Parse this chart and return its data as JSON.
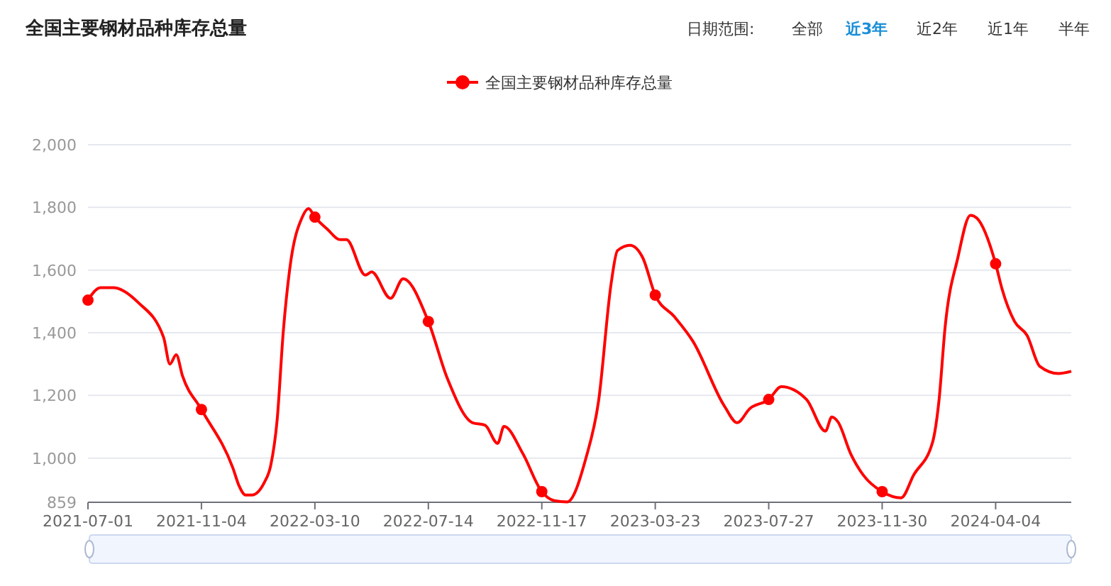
{
  "chart_data": {
    "type": "line",
    "title": "全国主要钢材品种库存总量",
    "annotations": [
      "日期范围:",
      "全部",
      "近3年",
      "近2年",
      "近1年",
      "半年"
    ],
    "x": [
      "2021-07-01",
      "2021-07-15",
      "2021-07-29",
      "2021-08-26",
      "2021-09-23",
      "2021-09-30",
      "2021-10-07",
      "2021-10-14",
      "2021-11-04",
      "2021-12-09",
      "2021-12-16",
      "2021-12-23",
      "2021-12-30",
      "2022-01-13",
      "2022-01-20",
      "2022-01-27",
      "2022-02-03",
      "2022-02-10",
      "2022-02-24",
      "2022-03-03",
      "2022-03-10",
      "2022-03-24",
      "2022-04-07",
      "2022-04-14",
      "2022-05-05",
      "2022-05-12",
      "2022-06-02",
      "2022-06-16",
      "2022-07-14",
      "2022-08-04",
      "2022-09-01",
      "2022-09-15",
      "2022-09-29",
      "2022-10-06",
      "2022-10-27",
      "2022-11-17",
      "2022-12-01",
      "2022-12-15",
      "2023-01-05",
      "2023-01-19",
      "2023-02-02",
      "2023-02-09",
      "2023-02-23",
      "2023-03-09",
      "2023-03-23",
      "2023-04-13",
      "2023-05-04",
      "2023-06-08",
      "2023-06-22",
      "2023-07-06",
      "2023-07-27",
      "2023-08-10",
      "2023-09-07",
      "2023-09-28",
      "2023-10-05",
      "2023-10-12",
      "2023-10-26",
      "2023-11-09",
      "2023-11-30",
      "2023-12-21",
      "2024-01-04",
      "2024-01-25",
      "2024-02-01",
      "2024-02-08",
      "2024-02-22",
      "2024-03-07",
      "2024-03-14",
      "2024-04-04",
      "2024-04-11",
      "2024-04-25",
      "2024-05-09",
      "2024-05-23",
      "2024-06-13",
      "2024-06-27"
    ],
    "series": [
      {
        "name": "全国主要钢材品种库存总量",
        "color": "#ff0000",
        "values": [
          1504,
          1544,
          1544,
          1496,
          1385,
          1300,
          1330,
          1262,
          1155,
          968,
          910,
          882,
          882,
          923,
          977,
          1119,
          1407,
          1602,
          1769,
          1796,
          1769,
          1730,
          1697,
          1697,
          1584,
          1594,
          1510,
          1572,
          1436,
          1255,
          1113,
          1105,
          1047,
          1101,
          1014,
          893,
          864,
          860,
          1000,
          1181,
          1557,
          1662,
          1679,
          1640,
          1520,
          1452,
          1372,
          1165,
          1113,
          1158,
          1187,
          1228,
          1187,
          1086,
          1131,
          1115,
          1014,
          946,
          893,
          873,
          946,
          1051,
          1181,
          1421,
          1639,
          1775,
          1766,
          1620,
          1541,
          1436,
          1391,
          1293,
          1270,
          1277
        ]
      },
      {
        "type": "scatter",
        "color": "#ff0000",
        "x": [
          "2021-07-01",
          "2021-11-04",
          "2022-03-10",
          "2022-07-14",
          "2022-11-17",
          "2023-03-23",
          "2023-07-27",
          "2023-11-30",
          "2024-04-04"
        ],
        "values": [
          1504,
          1155,
          1769,
          1436,
          893,
          1520,
          1187,
          893,
          1620
        ]
      }
    ],
    "xlim": [
      "2021-07-01",
      "2024-06-27"
    ],
    "xticks": [
      "2021-07-01",
      "2021-11-04",
      "2022-03-10",
      "2022-07-14",
      "2022-11-17",
      "2023-03-23",
      "2023-07-27",
      "2023-11-30",
      "2024-04-04"
    ],
    "ylim": [
      859,
      2000
    ],
    "yticks": [
      859,
      {
        "value": 1000,
        "label": "1,000"
      },
      {
        "value": 1200,
        "label": "1,200"
      },
      {
        "value": 1400,
        "label": "1,400"
      },
      {
        "value": 1600,
        "label": "1,600"
      },
      {
        "value": 1800,
        "label": "1,800"
      },
      {
        "value": 2000,
        "label": "2,000"
      }
    ],
    "grid": "y",
    "legend": "top",
    "line_style": "solid"
  }
}
